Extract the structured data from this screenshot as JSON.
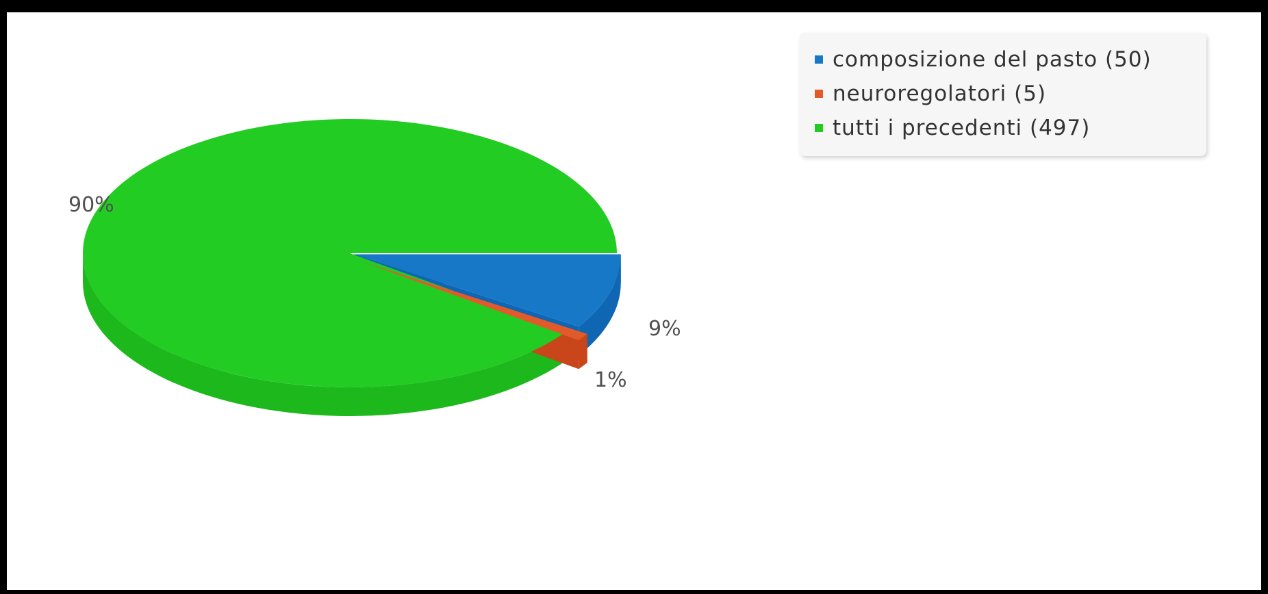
{
  "chart_data": {
    "type": "pie",
    "title": "",
    "style": "3d",
    "legend_position": "top-right",
    "slices": [
      {
        "label": "composizione del pasto",
        "value": 50,
        "percent_label": "9%",
        "color": "#1878c8",
        "side_color": "#0f66b3"
      },
      {
        "label": "neuroregolatori",
        "value": 5,
        "percent_label": "1%",
        "color": "#e25a2a",
        "side_color": "#c8461a"
      },
      {
        "label": "tutti i precedenti",
        "value": 497,
        "percent_label": "90%",
        "color": "#22cc22",
        "side_color": "#1cb81c"
      }
    ]
  },
  "legend": {
    "items": [
      {
        "text": "composizione del pasto (50)",
        "color": "#1878c8"
      },
      {
        "text": "neuroregolatori (5)",
        "color": "#e25a2a"
      },
      {
        "text": "tutti i precedenti (497)",
        "color": "#22cc22"
      }
    ]
  }
}
